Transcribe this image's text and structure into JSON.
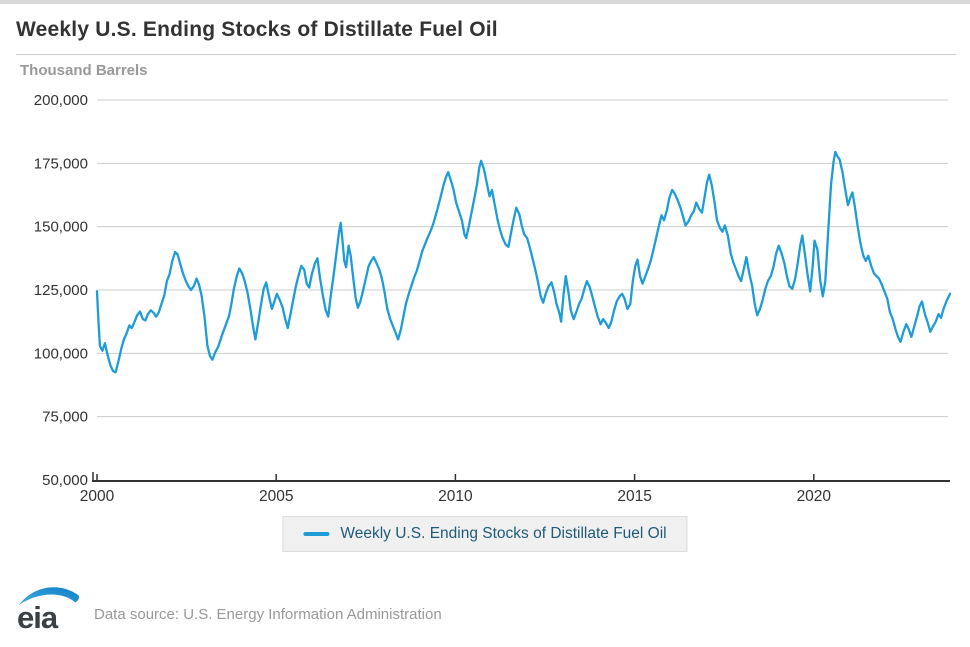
{
  "header": {
    "title": "Weekly U.S. Ending Stocks of Distillate Fuel Oil",
    "unit_label": "Thousand Barrels"
  },
  "legend": {
    "label": "Weekly U.S. Ending Stocks of Distillate Fuel Oil"
  },
  "footer": {
    "logo_text": "eia",
    "source": "Data source: U.S. Energy Information Administration"
  },
  "colors": {
    "line": "#1e9cd8",
    "grid": "#cccccc",
    "axis": "#333333",
    "tick_text": "#333333",
    "muted_text": "#999999",
    "legend_text": "#1f5a78"
  },
  "chart_data": {
    "type": "line",
    "title": "Weekly U.S. Ending Stocks of Distillate Fuel Oil",
    "xlabel": "",
    "ylabel": "Thousand Barrels",
    "series_name": "Weekly U.S. Ending Stocks of Distillate Fuel Oil",
    "line_color": "#1e9cd8",
    "grid": true,
    "legend_position": "bottom",
    "xlim": [
      2000,
      2023.8
    ],
    "ylim": [
      50000,
      200000
    ],
    "x_ticks": [
      2000,
      2005,
      2010,
      2015,
      2020
    ],
    "y_ticks": [
      50000,
      75000,
      100000,
      125000,
      150000,
      175000,
      200000
    ],
    "points": [
      [
        2000.0,
        124500
      ],
      [
        2000.04,
        113000
      ],
      [
        2000.08,
        103000
      ],
      [
        2000.15,
        101000
      ],
      [
        2000.22,
        104000
      ],
      [
        2000.3,
        99000
      ],
      [
        2000.38,
        95000
      ],
      [
        2000.45,
        93000
      ],
      [
        2000.52,
        92500
      ],
      [
        2000.6,
        97000
      ],
      [
        2000.68,
        102000
      ],
      [
        2000.75,
        105500
      ],
      [
        2000.83,
        108000
      ],
      [
        2000.9,
        111000
      ],
      [
        2000.97,
        110000
      ],
      [
        2001.05,
        112500
      ],
      [
        2001.12,
        115000
      ],
      [
        2001.2,
        116500
      ],
      [
        2001.28,
        113500
      ],
      [
        2001.35,
        113000
      ],
      [
        2001.42,
        115500
      ],
      [
        2001.5,
        117000
      ],
      [
        2001.58,
        116000
      ],
      [
        2001.65,
        114500
      ],
      [
        2001.72,
        116000
      ],
      [
        2001.8,
        119500
      ],
      [
        2001.88,
        123000
      ],
      [
        2001.95,
        128500
      ],
      [
        2002.02,
        131000
      ],
      [
        2002.1,
        136500
      ],
      [
        2002.18,
        140000
      ],
      [
        2002.25,
        139000
      ],
      [
        2002.32,
        135500
      ],
      [
        2002.4,
        131500
      ],
      [
        2002.48,
        128500
      ],
      [
        2002.55,
        126500
      ],
      [
        2002.62,
        125000
      ],
      [
        2002.7,
        126500
      ],
      [
        2002.78,
        129500
      ],
      [
        2002.85,
        127000
      ],
      [
        2002.92,
        122500
      ],
      [
        2003.0,
        114500
      ],
      [
        2003.08,
        103000
      ],
      [
        2003.15,
        99000
      ],
      [
        2003.22,
        97500
      ],
      [
        2003.3,
        100500
      ],
      [
        2003.38,
        102500
      ],
      [
        2003.45,
        105500
      ],
      [
        2003.52,
        108500
      ],
      [
        2003.6,
        111500
      ],
      [
        2003.68,
        114500
      ],
      [
        2003.75,
        119500
      ],
      [
        2003.82,
        125500
      ],
      [
        2003.9,
        130500
      ],
      [
        2003.97,
        133500
      ],
      [
        2004.05,
        131500
      ],
      [
        2004.12,
        128500
      ],
      [
        2004.2,
        124000
      ],
      [
        2004.28,
        117500
      ],
      [
        2004.35,
        111000
      ],
      [
        2004.42,
        105500
      ],
      [
        2004.5,
        112500
      ],
      [
        2004.58,
        119500
      ],
      [
        2004.65,
        125500
      ],
      [
        2004.72,
        128000
      ],
      [
        2004.8,
        122500
      ],
      [
        2004.88,
        117500
      ],
      [
        2004.95,
        120500
      ],
      [
        2005.02,
        123500
      ],
      [
        2005.1,
        121000
      ],
      [
        2005.18,
        118000
      ],
      [
        2005.25,
        113500
      ],
      [
        2005.32,
        110000
      ],
      [
        2005.4,
        115500
      ],
      [
        2005.48,
        121500
      ],
      [
        2005.55,
        126500
      ],
      [
        2005.62,
        130500
      ],
      [
        2005.7,
        134500
      ],
      [
        2005.78,
        133000
      ],
      [
        2005.85,
        127500
      ],
      [
        2005.92,
        126000
      ],
      [
        2006.0,
        131500
      ],
      [
        2006.08,
        135500
      ],
      [
        2006.15,
        137500
      ],
      [
        2006.22,
        130000
      ],
      [
        2006.3,
        123000
      ],
      [
        2006.38,
        117000
      ],
      [
        2006.45,
        114500
      ],
      [
        2006.52,
        122500
      ],
      [
        2006.6,
        130500
      ],
      [
        2006.68,
        139500
      ],
      [
        2006.75,
        147500
      ],
      [
        2006.8,
        151500
      ],
      [
        2006.85,
        144500
      ],
      [
        2006.9,
        136500
      ],
      [
        2006.95,
        134000
      ],
      [
        2007.02,
        142500
      ],
      [
        2007.08,
        138500
      ],
      [
        2007.15,
        129500
      ],
      [
        2007.22,
        121500
      ],
      [
        2007.28,
        118000
      ],
      [
        2007.35,
        120500
      ],
      [
        2007.42,
        124500
      ],
      [
        2007.5,
        129500
      ],
      [
        2007.58,
        134500
      ],
      [
        2007.65,
        136500
      ],
      [
        2007.72,
        138000
      ],
      [
        2007.8,
        135500
      ],
      [
        2007.88,
        133000
      ],
      [
        2007.95,
        129500
      ],
      [
        2008.02,
        124500
      ],
      [
        2008.1,
        117500
      ],
      [
        2008.18,
        113500
      ],
      [
        2008.25,
        111000
      ],
      [
        2008.32,
        108500
      ],
      [
        2008.4,
        105500
      ],
      [
        2008.48,
        109500
      ],
      [
        2008.55,
        114500
      ],
      [
        2008.62,
        119500
      ],
      [
        2008.7,
        123500
      ],
      [
        2008.78,
        127000
      ],
      [
        2008.85,
        130000
      ],
      [
        2008.92,
        132500
      ],
      [
        2009.0,
        136500
      ],
      [
        2009.08,
        140500
      ],
      [
        2009.15,
        143000
      ],
      [
        2009.22,
        145500
      ],
      [
        2009.3,
        148000
      ],
      [
        2009.38,
        151000
      ],
      [
        2009.45,
        154500
      ],
      [
        2009.52,
        158000
      ],
      [
        2009.6,
        162500
      ],
      [
        2009.68,
        167000
      ],
      [
        2009.75,
        170000
      ],
      [
        2009.8,
        171500
      ],
      [
        2009.88,
        168000
      ],
      [
        2009.95,
        164500
      ],
      [
        2010.02,
        159500
      ],
      [
        2010.1,
        156000
      ],
      [
        2010.18,
        152500
      ],
      [
        2010.25,
        147000
      ],
      [
        2010.3,
        145500
      ],
      [
        2010.38,
        150500
      ],
      [
        2010.45,
        155500
      ],
      [
        2010.52,
        160500
      ],
      [
        2010.6,
        166500
      ],
      [
        2010.67,
        173500
      ],
      [
        2010.72,
        176000
      ],
      [
        2010.8,
        172500
      ],
      [
        2010.88,
        167000
      ],
      [
        2010.95,
        162000
      ],
      [
        2011.02,
        164500
      ],
      [
        2011.1,
        158500
      ],
      [
        2011.18,
        152500
      ],
      [
        2011.25,
        148500
      ],
      [
        2011.32,
        145500
      ],
      [
        2011.4,
        143000
      ],
      [
        2011.48,
        142000
      ],
      [
        2011.55,
        147500
      ],
      [
        2011.62,
        152500
      ],
      [
        2011.7,
        157500
      ],
      [
        2011.78,
        155000
      ],
      [
        2011.85,
        150500
      ],
      [
        2011.92,
        147000
      ],
      [
        2012.0,
        145500
      ],
      [
        2012.08,
        141500
      ],
      [
        2012.15,
        137500
      ],
      [
        2012.22,
        133500
      ],
      [
        2012.3,
        128500
      ],
      [
        2012.38,
        122500
      ],
      [
        2012.45,
        120000
      ],
      [
        2012.52,
        123500
      ],
      [
        2012.6,
        126500
      ],
      [
        2012.68,
        128000
      ],
      [
        2012.75,
        124500
      ],
      [
        2012.82,
        119500
      ],
      [
        2012.9,
        116000
      ],
      [
        2012.95,
        112500
      ],
      [
        2013.02,
        123500
      ],
      [
        2013.08,
        130500
      ],
      [
        2013.15,
        124500
      ],
      [
        2013.22,
        117000
      ],
      [
        2013.3,
        113500
      ],
      [
        2013.38,
        116500
      ],
      [
        2013.45,
        119500
      ],
      [
        2013.52,
        121500
      ],
      [
        2013.6,
        125500
      ],
      [
        2013.67,
        128500
      ],
      [
        2013.75,
        126000
      ],
      [
        2013.82,
        122500
      ],
      [
        2013.9,
        118000
      ],
      [
        2013.97,
        114500
      ],
      [
        2014.05,
        111500
      ],
      [
        2014.12,
        113500
      ],
      [
        2014.2,
        112000
      ],
      [
        2014.28,
        110000
      ],
      [
        2014.35,
        112500
      ],
      [
        2014.42,
        116500
      ],
      [
        2014.5,
        120500
      ],
      [
        2014.58,
        122500
      ],
      [
        2014.65,
        123500
      ],
      [
        2014.72,
        121500
      ],
      [
        2014.8,
        117500
      ],
      [
        2014.88,
        119500
      ],
      [
        2014.95,
        128500
      ],
      [
        2015.02,
        134500
      ],
      [
        2015.08,
        137000
      ],
      [
        2015.15,
        130500
      ],
      [
        2015.22,
        127500
      ],
      [
        2015.3,
        130500
      ],
      [
        2015.38,
        133500
      ],
      [
        2015.45,
        136500
      ],
      [
        2015.52,
        140500
      ],
      [
        2015.6,
        145500
      ],
      [
        2015.68,
        150500
      ],
      [
        2015.75,
        154500
      ],
      [
        2015.82,
        152500
      ],
      [
        2015.9,
        156500
      ],
      [
        2015.97,
        161500
      ],
      [
        2016.05,
        164500
      ],
      [
        2016.12,
        163000
      ],
      [
        2016.2,
        160500
      ],
      [
        2016.28,
        157500
      ],
      [
        2016.35,
        154000
      ],
      [
        2016.42,
        150500
      ],
      [
        2016.5,
        152000
      ],
      [
        2016.58,
        154500
      ],
      [
        2016.65,
        156000
      ],
      [
        2016.72,
        159500
      ],
      [
        2016.8,
        157000
      ],
      [
        2016.88,
        155500
      ],
      [
        2016.95,
        161500
      ],
      [
        2017.02,
        167500
      ],
      [
        2017.08,
        170500
      ],
      [
        2017.15,
        166500
      ],
      [
        2017.22,
        160500
      ],
      [
        2017.3,
        152500
      ],
      [
        2017.38,
        149500
      ],
      [
        2017.45,
        148000
      ],
      [
        2017.52,
        150500
      ],
      [
        2017.6,
        146500
      ],
      [
        2017.68,
        139500
      ],
      [
        2017.75,
        136000
      ],
      [
        2017.82,
        133500
      ],
      [
        2017.9,
        130500
      ],
      [
        2017.97,
        128500
      ],
      [
        2018.05,
        133500
      ],
      [
        2018.12,
        138000
      ],
      [
        2018.2,
        131500
      ],
      [
        2018.28,
        126500
      ],
      [
        2018.35,
        119500
      ],
      [
        2018.42,
        115000
      ],
      [
        2018.5,
        117500
      ],
      [
        2018.58,
        121500
      ],
      [
        2018.65,
        125500
      ],
      [
        2018.72,
        128500
      ],
      [
        2018.8,
        130500
      ],
      [
        2018.88,
        134500
      ],
      [
        2018.95,
        139500
      ],
      [
        2019.02,
        142500
      ],
      [
        2019.1,
        139500
      ],
      [
        2019.18,
        135500
      ],
      [
        2019.25,
        130500
      ],
      [
        2019.32,
        126500
      ],
      [
        2019.4,
        125500
      ],
      [
        2019.48,
        129500
      ],
      [
        2019.55,
        135500
      ],
      [
        2019.62,
        142500
      ],
      [
        2019.68,
        146500
      ],
      [
        2019.75,
        139500
      ],
      [
        2019.82,
        131500
      ],
      [
        2019.9,
        124500
      ],
      [
        2019.97,
        134500
      ],
      [
        2020.02,
        144500
      ],
      [
        2020.1,
        141000
      ],
      [
        2020.18,
        128500
      ],
      [
        2020.25,
        122500
      ],
      [
        2020.32,
        128500
      ],
      [
        2020.4,
        147500
      ],
      [
        2020.48,
        166500
      ],
      [
        2020.55,
        175500
      ],
      [
        2020.6,
        179500
      ],
      [
        2020.65,
        178000
      ],
      [
        2020.72,
        176500
      ],
      [
        2020.8,
        171500
      ],
      [
        2020.88,
        164500
      ],
      [
        2020.95,
        158500
      ],
      [
        2021.02,
        161500
      ],
      [
        2021.08,
        163500
      ],
      [
        2021.15,
        157500
      ],
      [
        2021.22,
        150500
      ],
      [
        2021.3,
        143500
      ],
      [
        2021.38,
        138500
      ],
      [
        2021.45,
        136500
      ],
      [
        2021.52,
        138500
      ],
      [
        2021.6,
        134500
      ],
      [
        2021.68,
        131500
      ],
      [
        2021.75,
        130500
      ],
      [
        2021.82,
        129500
      ],
      [
        2021.9,
        127000
      ],
      [
        2021.97,
        124500
      ],
      [
        2022.05,
        121500
      ],
      [
        2022.12,
        116500
      ],
      [
        2022.2,
        113500
      ],
      [
        2022.28,
        109500
      ],
      [
        2022.35,
        106500
      ],
      [
        2022.42,
        104500
      ],
      [
        2022.5,
        108500
      ],
      [
        2022.58,
        111500
      ],
      [
        2022.65,
        109500
      ],
      [
        2022.72,
        106500
      ],
      [
        2022.8,
        110500
      ],
      [
        2022.88,
        114500
      ],
      [
        2022.95,
        118500
      ],
      [
        2023.02,
        120500
      ],
      [
        2023.1,
        115500
      ],
      [
        2023.18,
        112000
      ],
      [
        2023.25,
        108500
      ],
      [
        2023.32,
        110500
      ],
      [
        2023.4,
        112500
      ],
      [
        2023.48,
        115500
      ],
      [
        2023.55,
        114000
      ],
      [
        2023.62,
        117500
      ],
      [
        2023.7,
        120500
      ],
      [
        2023.8,
        123500
      ]
    ]
  }
}
